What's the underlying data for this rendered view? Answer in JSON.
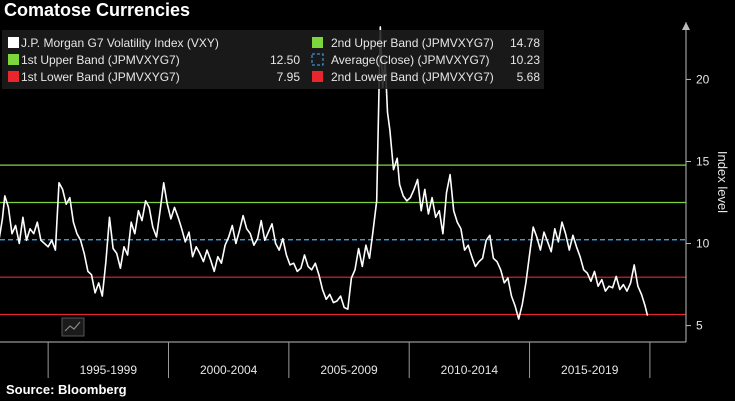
{
  "title": "Comatose Currencies",
  "source": "Source:  Bloomberg",
  "chart_data": {
    "type": "line",
    "ylabel": "Index level",
    "ylim": [
      4,
      23.5
    ],
    "yticks": [
      5,
      10,
      15,
      20
    ],
    "xlim": [
      1993.0,
      2021.5
    ],
    "x_category_labels": [
      "1995-1999",
      "2000-2004",
      "2005-2009",
      "2010-2014",
      "2015-2019"
    ],
    "x_category_bounds": [
      [
        1995.0,
        2000.0
      ],
      [
        2000.0,
        2005.0
      ],
      [
        2005.0,
        2010.0
      ],
      [
        2010.0,
        2015.0
      ],
      [
        2015.0,
        2020.0
      ]
    ],
    "grid": false,
    "legend_placement": "top-left",
    "legend": [
      {
        "name": "J.P. Morgan G7 Volatility Index (VXY)",
        "value": "",
        "color": "#ffffff",
        "style": "solid"
      },
      {
        "name": "2nd Upper Band (JPMVXYG7)",
        "value": "14.78",
        "color": "#7cd63c",
        "style": "solid"
      },
      {
        "name": "1st Upper Band (JPMVXYG7)",
        "value": "12.50",
        "color": "#7cd63c",
        "style": "solid"
      },
      {
        "name": "Average(Close) (JPMVXYG7)",
        "value": "10.23",
        "color": "#3ab4ff",
        "style": "dashed"
      },
      {
        "name": "1st Lower Band (JPMVXYG7)",
        "value": "7.95",
        "color": "#e8262c",
        "style": "solid"
      },
      {
        "name": "2nd Lower Band (JPMVXYG7)",
        "value": "5.68",
        "color": "#e8262c",
        "style": "solid"
      }
    ],
    "bands": [
      {
        "name": "2nd Upper Band (JPMVXYG7)",
        "y": 14.78,
        "color": "#7cd63c",
        "style": "solid"
      },
      {
        "name": "1st Upper Band (JPMVXYG7)",
        "y": 12.5,
        "color": "#7cd63c",
        "style": "solid"
      },
      {
        "name": "Average(Close) (JPMVXYG7)",
        "y": 10.23,
        "color": "#3ab4ff",
        "style": "dashed"
      },
      {
        "name": "1st Lower Band (JPMVXYG7)",
        "y": 7.95,
        "color": "#e8262c",
        "style": "solid"
      },
      {
        "name": "2nd Lower Band (JPMVXYG7)",
        "y": 5.68,
        "color": "#e8262c",
        "style": "solid"
      }
    ],
    "series": [
      {
        "name": "J.P. Morgan G7 Volatility Index (VXY)",
        "color": "#ffffff",
        "points": [
          [
            1992.9,
            9.7
          ],
          [
            1993.1,
            11.5
          ],
          [
            1993.2,
            12.9
          ],
          [
            1993.35,
            12.2
          ],
          [
            1993.5,
            10.6
          ],
          [
            1993.65,
            11.1
          ],
          [
            1993.8,
            10.0
          ],
          [
            1993.95,
            11.6
          ],
          [
            1994.1,
            10.2
          ],
          [
            1994.25,
            10.9
          ],
          [
            1994.4,
            10.6
          ],
          [
            1994.55,
            11.3
          ],
          [
            1994.7,
            10.2
          ],
          [
            1994.85,
            10.0
          ],
          [
            1995.0,
            9.8
          ],
          [
            1995.15,
            10.2
          ],
          [
            1995.3,
            9.6
          ],
          [
            1995.45,
            13.7
          ],
          [
            1995.6,
            13.3
          ],
          [
            1995.75,
            12.4
          ],
          [
            1995.9,
            12.8
          ],
          [
            1996.05,
            11.3
          ],
          [
            1996.2,
            10.6
          ],
          [
            1996.35,
            10.2
          ],
          [
            1996.5,
            9.4
          ],
          [
            1996.65,
            8.3
          ],
          [
            1996.8,
            8.1
          ],
          [
            1996.95,
            7.0
          ],
          [
            1997.1,
            7.6
          ],
          [
            1997.25,
            6.8
          ],
          [
            1997.4,
            8.9
          ],
          [
            1997.55,
            11.6
          ],
          [
            1997.7,
            9.7
          ],
          [
            1997.85,
            9.4
          ],
          [
            1998.0,
            8.5
          ],
          [
            1998.15,
            9.8
          ],
          [
            1998.3,
            9.3
          ],
          [
            1998.45,
            11.3
          ],
          [
            1998.6,
            10.6
          ],
          [
            1998.75,
            12.0
          ],
          [
            1998.9,
            11.4
          ],
          [
            1999.05,
            12.6
          ],
          [
            1999.2,
            12.2
          ],
          [
            1999.35,
            11.0
          ],
          [
            1999.5,
            10.4
          ],
          [
            1999.65,
            12.0
          ],
          [
            1999.8,
            13.7
          ],
          [
            1999.95,
            12.4
          ],
          [
            2000.1,
            11.5
          ],
          [
            2000.25,
            12.2
          ],
          [
            2000.4,
            11.6
          ],
          [
            2000.55,
            10.9
          ],
          [
            2000.7,
            10.1
          ],
          [
            2000.85,
            10.7
          ],
          [
            2001.0,
            9.2
          ],
          [
            2001.15,
            9.8
          ],
          [
            2001.3,
            9.4
          ],
          [
            2001.45,
            8.9
          ],
          [
            2001.6,
            9.6
          ],
          [
            2001.75,
            9.0
          ],
          [
            2001.9,
            8.3
          ],
          [
            2002.05,
            9.2
          ],
          [
            2002.2,
            8.8
          ],
          [
            2002.35,
            9.9
          ],
          [
            2002.5,
            10.4
          ],
          [
            2002.65,
            11.1
          ],
          [
            2002.8,
            10.0
          ],
          [
            2002.95,
            10.8
          ],
          [
            2003.1,
            11.7
          ],
          [
            2003.25,
            10.9
          ],
          [
            2003.4,
            10.6
          ],
          [
            2003.55,
            9.9
          ],
          [
            2003.7,
            10.3
          ],
          [
            2003.85,
            11.4
          ],
          [
            2004.0,
            10.2
          ],
          [
            2004.15,
            10.7
          ],
          [
            2004.3,
            11.2
          ],
          [
            2004.45,
            10.0
          ],
          [
            2004.6,
            9.6
          ],
          [
            2004.75,
            10.3
          ],
          [
            2004.9,
            9.3
          ],
          [
            2005.05,
            8.7
          ],
          [
            2005.2,
            8.8
          ],
          [
            2005.35,
            8.3
          ],
          [
            2005.5,
            8.5
          ],
          [
            2005.65,
            9.3
          ],
          [
            2005.8,
            8.6
          ],
          [
            2005.95,
            8.4
          ],
          [
            2006.1,
            8.8
          ],
          [
            2006.25,
            8.1
          ],
          [
            2006.4,
            7.2
          ],
          [
            2006.55,
            6.6
          ],
          [
            2006.7,
            6.9
          ],
          [
            2006.85,
            6.4
          ],
          [
            2007.0,
            6.5
          ],
          [
            2007.15,
            6.8
          ],
          [
            2007.3,
            6.1
          ],
          [
            2007.45,
            6.0
          ],
          [
            2007.6,
            7.9
          ],
          [
            2007.75,
            8.4
          ],
          [
            2007.9,
            9.7
          ],
          [
            2008.05,
            8.6
          ],
          [
            2008.2,
            9.9
          ],
          [
            2008.35,
            9.1
          ],
          [
            2008.5,
            10.8
          ],
          [
            2008.65,
            12.6
          ],
          [
            2008.8,
            23.2
          ],
          [
            2008.9,
            19.5
          ],
          [
            2009.0,
            21.2
          ],
          [
            2009.1,
            18.0
          ],
          [
            2009.2,
            16.9
          ],
          [
            2009.35,
            14.5
          ],
          [
            2009.5,
            15.2
          ],
          [
            2009.6,
            13.6
          ],
          [
            2009.75,
            12.9
          ],
          [
            2009.9,
            12.6
          ],
          [
            2010.05,
            12.8
          ],
          [
            2010.2,
            13.3
          ],
          [
            2010.35,
            13.9
          ],
          [
            2010.5,
            12.0
          ],
          [
            2010.65,
            13.3
          ],
          [
            2010.8,
            11.8
          ],
          [
            2010.95,
            12.8
          ],
          [
            2011.1,
            11.6
          ],
          [
            2011.25,
            12.0
          ],
          [
            2011.4,
            10.6
          ],
          [
            2011.55,
            13.1
          ],
          [
            2011.7,
            14.2
          ],
          [
            2011.85,
            12.0
          ],
          [
            2012.0,
            11.3
          ],
          [
            2012.15,
            10.9
          ],
          [
            2012.3,
            9.6
          ],
          [
            2012.45,
            9.9
          ],
          [
            2012.6,
            9.2
          ],
          [
            2012.75,
            8.6
          ],
          [
            2012.9,
            8.9
          ],
          [
            2013.05,
            9.1
          ],
          [
            2013.2,
            10.2
          ],
          [
            2013.35,
            10.5
          ],
          [
            2013.5,
            9.1
          ],
          [
            2013.65,
            8.9
          ],
          [
            2013.8,
            8.4
          ],
          [
            2013.95,
            7.6
          ],
          [
            2014.1,
            7.9
          ],
          [
            2014.25,
            6.8
          ],
          [
            2014.4,
            6.2
          ],
          [
            2014.55,
            5.4
          ],
          [
            2014.7,
            6.3
          ],
          [
            2014.85,
            7.6
          ],
          [
            2015.0,
            9.3
          ],
          [
            2015.15,
            11.0
          ],
          [
            2015.3,
            10.4
          ],
          [
            2015.45,
            9.6
          ],
          [
            2015.6,
            10.7
          ],
          [
            2015.75,
            10.1
          ],
          [
            2015.9,
            9.5
          ],
          [
            2016.05,
            10.9
          ],
          [
            2016.2,
            10.1
          ],
          [
            2016.35,
            11.3
          ],
          [
            2016.5,
            10.6
          ],
          [
            2016.65,
            9.6
          ],
          [
            2016.8,
            10.5
          ],
          [
            2016.95,
            9.8
          ],
          [
            2017.1,
            9.2
          ],
          [
            2017.25,
            8.4
          ],
          [
            2017.4,
            8.2
          ],
          [
            2017.55,
            7.7
          ],
          [
            2017.7,
            8.3
          ],
          [
            2017.85,
            7.4
          ],
          [
            2018.0,
            7.8
          ],
          [
            2018.15,
            7.1
          ],
          [
            2018.3,
            7.4
          ],
          [
            2018.45,
            7.3
          ],
          [
            2018.6,
            8.0
          ],
          [
            2018.75,
            7.2
          ],
          [
            2018.9,
            7.5
          ],
          [
            2019.05,
            7.1
          ],
          [
            2019.2,
            7.6
          ],
          [
            2019.35,
            8.7
          ],
          [
            2019.5,
            7.4
          ],
          [
            2019.65,
            6.9
          ],
          [
            2019.8,
            6.2
          ],
          [
            2019.9,
            5.6
          ]
        ]
      }
    ]
  }
}
